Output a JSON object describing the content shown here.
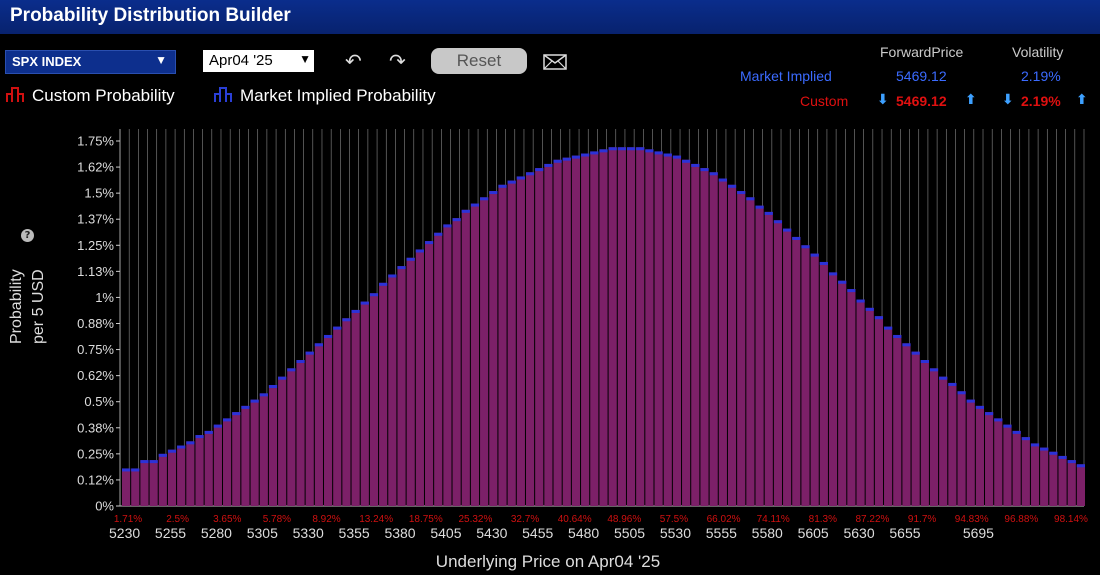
{
  "window": {
    "title": "Probability Distribution Builder"
  },
  "toolbar": {
    "symbol_value": "SPX INDEX",
    "date_value": "Apr04 '25",
    "undo_icon": "undo-icon",
    "redo_icon": "redo-icon",
    "reset_label": "Reset",
    "mail_icon": "mail-icon"
  },
  "legend": {
    "custom_label": "Custom Probability",
    "market_label": "Market Implied Probability",
    "custom_color": "#d01010",
    "market_color": "#2a3fd6"
  },
  "stats": {
    "forward_header": "ForwardPrice",
    "volatility_header": "Volatility",
    "market_row_label": "Market Implied",
    "market_forward": "5469.12",
    "market_vol": "2.19%",
    "custom_row_label": "Custom",
    "custom_forward": "5469.12",
    "custom_vol": "2.19%"
  },
  "axis": {
    "ylabel_line1": "Probability",
    "ylabel_line2": "per 5 USD",
    "xlabel": "Underlying Price on Apr04 '25"
  },
  "colors": {
    "bar_fill": "#7c2068",
    "bar_cap": "#2c32d8",
    "cumulative_label": "#d01010",
    "grid": "#8a8a8a"
  },
  "chart_data": {
    "type": "bar",
    "title": "",
    "xlabel": "Underlying Price on Apr04 '25",
    "ylabel": "Probability per 5 USD",
    "ylim": [
      0,
      1.8
    ],
    "y_ticks": [
      "0%",
      "0.12%",
      "0.25%",
      "0.38%",
      "0.5%",
      "0.62%",
      "0.75%",
      "0.88%",
      "1%",
      "1.13%",
      "1.25%",
      "1.37%",
      "1.5%",
      "1.62%",
      "1.75%"
    ],
    "y_tick_values": [
      0,
      0.125,
      0.25,
      0.375,
      0.5,
      0.625,
      0.75,
      0.875,
      1.0,
      1.125,
      1.25,
      1.375,
      1.5,
      1.625,
      1.75
    ],
    "x_ticks": [
      "5230",
      "5255",
      "5280",
      "5305",
      "5330",
      "5355",
      "5380",
      "5405",
      "5430",
      "5455",
      "5480",
      "5505",
      "5530",
      "5555",
      "5580",
      "5605",
      "5630",
      "5655",
      "5695"
    ],
    "x_tick_values": [
      5230,
      5255,
      5280,
      5305,
      5330,
      5355,
      5380,
      5405,
      5430,
      5455,
      5480,
      5505,
      5530,
      5555,
      5580,
      5605,
      5630,
      5655,
      5695
    ],
    "cumulative_labels": [
      "1.71%",
      "2.5%",
      "3.65%",
      "5.78%",
      "8.92%",
      "13.24%",
      "18.75%",
      "25.32%",
      "32.7%",
      "40.64%",
      "48.96%",
      "57.5%",
      "66.02%",
      "74.11%",
      "81.3%",
      "87.22%",
      "91.7%",
      "94.83%",
      "96.88%",
      "98.14%"
    ],
    "x_start": 5230,
    "x_step": 5,
    "values": [
      0.18,
      0.18,
      0.22,
      0.22,
      0.25,
      0.27,
      0.29,
      0.31,
      0.34,
      0.36,
      0.39,
      0.42,
      0.45,
      0.48,
      0.51,
      0.54,
      0.58,
      0.62,
      0.66,
      0.7,
      0.74,
      0.78,
      0.82,
      0.86,
      0.9,
      0.94,
      0.98,
      1.02,
      1.07,
      1.11,
      1.15,
      1.19,
      1.23,
      1.27,
      1.31,
      1.35,
      1.38,
      1.42,
      1.45,
      1.48,
      1.51,
      1.54,
      1.56,
      1.58,
      1.6,
      1.62,
      1.64,
      1.66,
      1.67,
      1.68,
      1.69,
      1.7,
      1.71,
      1.72,
      1.72,
      1.72,
      1.72,
      1.71,
      1.7,
      1.69,
      1.68,
      1.66,
      1.64,
      1.62,
      1.6,
      1.57,
      1.54,
      1.51,
      1.48,
      1.44,
      1.41,
      1.37,
      1.33,
      1.29,
      1.25,
      1.21,
      1.17,
      1.12,
      1.08,
      1.04,
      0.99,
      0.95,
      0.91,
      0.86,
      0.82,
      0.78,
      0.74,
      0.7,
      0.66,
      0.62,
      0.59,
      0.55,
      0.51,
      0.48,
      0.45,
      0.42,
      0.39,
      0.36,
      0.33,
      0.3,
      0.28,
      0.26,
      0.24,
      0.22,
      0.2
    ]
  }
}
